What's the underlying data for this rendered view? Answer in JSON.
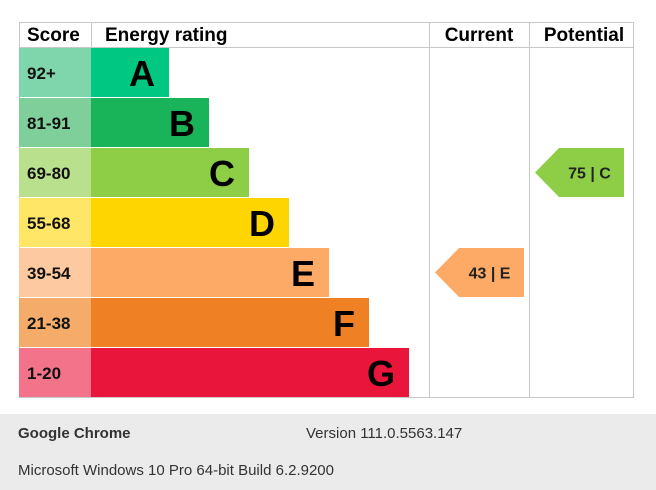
{
  "chart_data": {
    "type": "bar",
    "headers": {
      "score": "Score",
      "rating": "Energy rating",
      "current": "Current",
      "potential": "Potential"
    },
    "bands": [
      {
        "score": "92+",
        "letter": "A",
        "color": "#00c781",
        "score_color": "#7fd6ad"
      },
      {
        "score": "81-91",
        "letter": "B",
        "color": "#19b459",
        "score_color": "#7fcf9b"
      },
      {
        "score": "69-80",
        "letter": "C",
        "color": "#8dce46",
        "score_color": "#b9e08d"
      },
      {
        "score": "55-68",
        "letter": "D",
        "color": "#ffd500",
        "score_color": "#ffe666"
      },
      {
        "score": "39-54",
        "letter": "E",
        "color": "#fcaa65",
        "score_color": "#fdc9a0"
      },
      {
        "score": "21-38",
        "letter": "F",
        "color": "#ef8023",
        "score_color": "#f5ac6b"
      },
      {
        "score": "1-20",
        "letter": "G",
        "color": "#e9153b",
        "score_color": "#f2738a"
      }
    ],
    "current": {
      "value": 43,
      "band": "E",
      "label": "43 | E",
      "color": "#fcaa65"
    },
    "potential": {
      "value": 75,
      "band": "C",
      "label": "75 | C",
      "color": "#8dce46"
    }
  },
  "footer": {
    "browser_name": "Google Chrome",
    "browser_version": "Version 111.0.5563.147",
    "os_info": "Microsoft Windows 10 Pro 64-bit Build 6.2.9200"
  }
}
